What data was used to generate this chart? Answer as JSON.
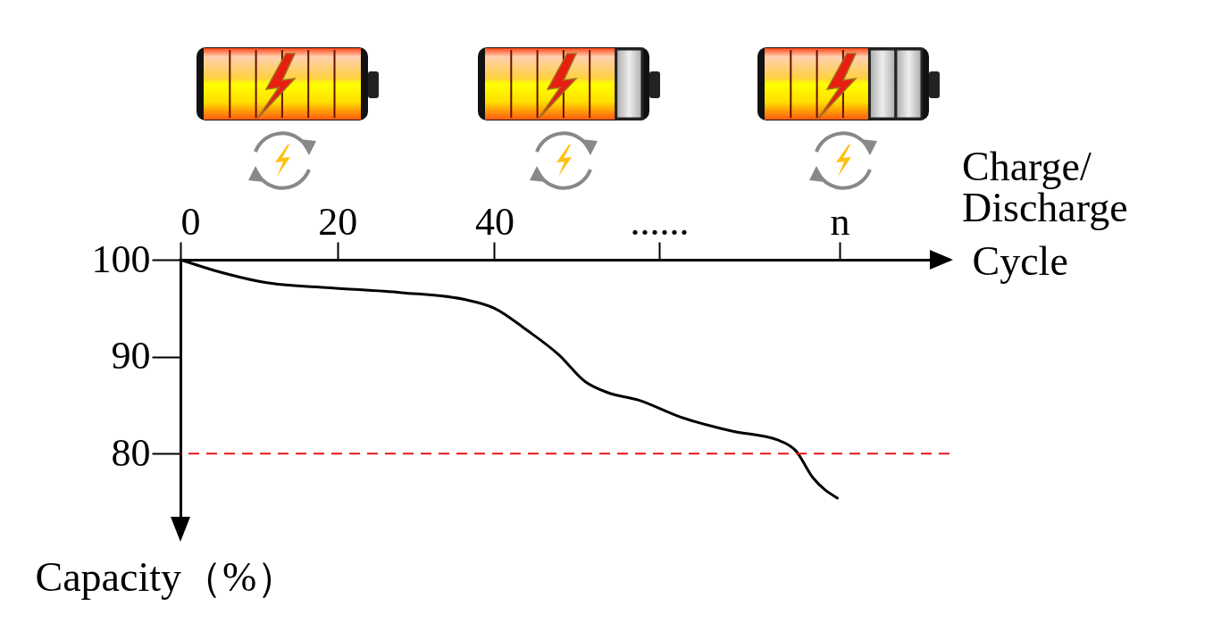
{
  "chart_data": {
    "type": "line",
    "xlabel": "Cycle",
    "ylabel": "Capacity（%）",
    "xlim": [
      0,
      98
    ],
    "ylim": [
      72,
      100
    ],
    "xticks": [
      0,
      20,
      40,
      {
        "value": 61,
        "label": "......"
      },
      {
        "value": 84,
        "label": "n"
      }
    ],
    "yticks": [
      100,
      90,
      80
    ],
    "series": [
      {
        "color": "#000000",
        "x": [
          0,
          4.3,
          11.2,
          19.1,
          28.2,
          36.2,
          40,
          44.2,
          48.2,
          51.6,
          54.4,
          58.4,
          63.6,
          70.4,
          76.1,
          78.4,
          80.6,
          83.7
        ],
        "values": [
          100,
          98.9,
          97.6,
          97.1,
          96.6,
          95.9,
          95.0,
          92.7,
          90.2,
          87.4,
          86.3,
          85.5,
          83.8,
          82.3,
          81.4,
          80.3,
          77.5,
          75.4
        ]
      }
    ],
    "ref_lines": [
      {
        "axis": "y",
        "value": 80,
        "color": "#e8161b",
        "line_style": "dashed"
      }
    ],
    "annotations": [
      "Charge/\nDischarge"
    ],
    "grid": false,
    "line_style": "solid"
  }
}
